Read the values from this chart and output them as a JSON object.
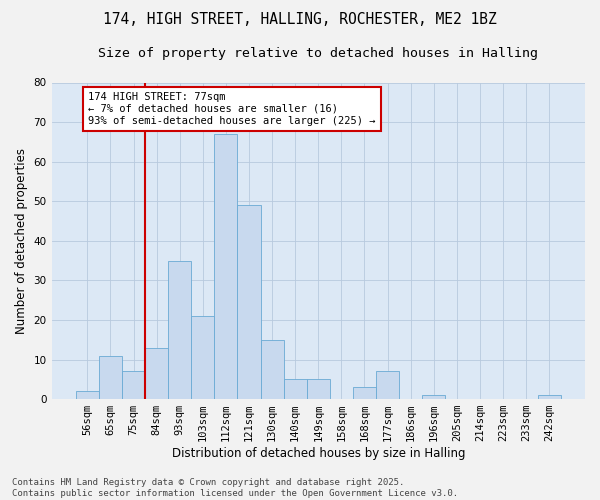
{
  "title_line1": "174, HIGH STREET, HALLING, ROCHESTER, ME2 1BZ",
  "title_line2": "Size of property relative to detached houses in Halling",
  "xlabel": "Distribution of detached houses by size in Halling",
  "ylabel": "Number of detached properties",
  "categories": [
    "56sqm",
    "65sqm",
    "75sqm",
    "84sqm",
    "93sqm",
    "103sqm",
    "112sqm",
    "121sqm",
    "130sqm",
    "140sqm",
    "149sqm",
    "158sqm",
    "168sqm",
    "177sqm",
    "186sqm",
    "196sqm",
    "205sqm",
    "214sqm",
    "223sqm",
    "233sqm",
    "242sqm"
  ],
  "values": [
    2,
    11,
    7,
    13,
    35,
    21,
    67,
    49,
    15,
    5,
    5,
    0,
    3,
    7,
    0,
    1,
    0,
    0,
    0,
    0,
    1
  ],
  "bar_color": "#c8d9ee",
  "bar_edge_color": "#6aaad4",
  "grid_color": "#b8c9de",
  "background_color": "#dce8f5",
  "fig_background_color": "#f2f2f2",
  "property_line_color": "#cc0000",
  "annotation_text": "174 HIGH STREET: 77sqm\n← 7% of detached houses are smaller (16)\n93% of semi-detached houses are larger (225) →",
  "annotation_box_facecolor": "#ffffff",
  "annotation_box_edgecolor": "#cc0000",
  "ylim": [
    0,
    80
  ],
  "yticks": [
    0,
    10,
    20,
    30,
    40,
    50,
    60,
    70,
    80
  ],
  "title_fontsize": 10.5,
  "subtitle_fontsize": 9.5,
  "axis_label_fontsize": 8.5,
  "tick_fontsize": 7.5,
  "annotation_fontsize": 7.5,
  "footer_fontsize": 6.5,
  "footer_text": "Contains HM Land Registry data © Crown copyright and database right 2025.\nContains public sector information licensed under the Open Government Licence v3.0."
}
